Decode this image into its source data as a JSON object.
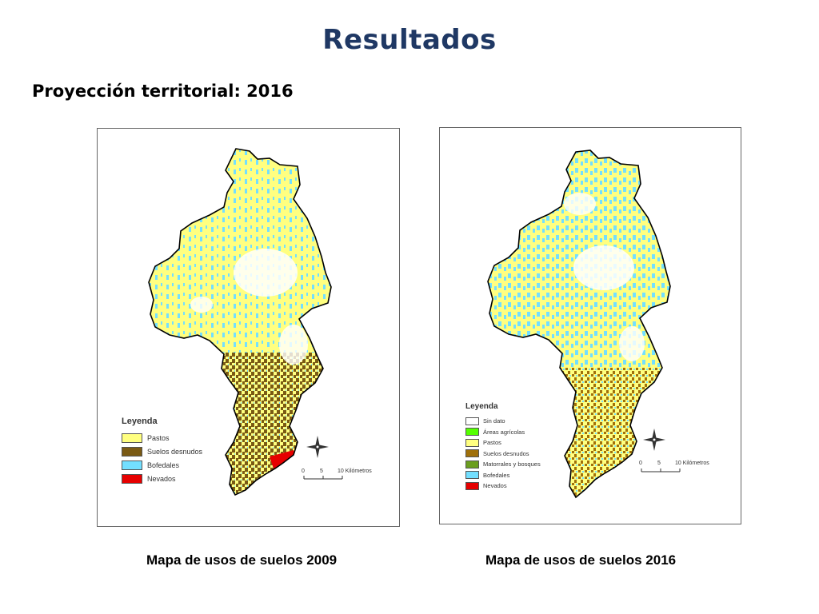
{
  "slide": {
    "title": "Resultados",
    "subtitle": "Proyección territorial: 2016"
  },
  "colors": {
    "title": "#1F3864",
    "pastos": "#FFFF80",
    "suelos_desnudos": "#7A5A14",
    "suelos_desnudos_2016": "#A0700A",
    "bofedales": "#73DFFF",
    "nevados": "#E60000",
    "sin_dato": "#FFFFFF",
    "areas_agricolas": "#55FF00",
    "matorrales": "#6B9E1F"
  },
  "maps": [
    {
      "caption": "Mapa de usos de suelos 2009",
      "legend": {
        "title": "Leyenda",
        "items": [
          {
            "label": "Pastos",
            "color": "#FFFF80"
          },
          {
            "label": "Suelos desnudos",
            "color": "#7A5A14"
          },
          {
            "label": "Bofedales",
            "color": "#73DFFF"
          },
          {
            "label": "Nevados",
            "color": "#E60000"
          }
        ]
      },
      "scale": {
        "ticks": [
          "0",
          "5",
          "10 Kilómetros"
        ]
      }
    },
    {
      "caption": "Mapa de usos de suelos 2016",
      "legend": {
        "title": "Leyenda",
        "items": [
          {
            "label": "Sin dato",
            "color": "#FFFFFF"
          },
          {
            "label": "Áreas agrícolas",
            "color": "#55FF00"
          },
          {
            "label": "Pastos",
            "color": "#FFFF80"
          },
          {
            "label": "Suelos desnudos",
            "color": "#A0700A"
          },
          {
            "label": "Matorrales y bosques",
            "color": "#6B9E1F"
          },
          {
            "label": "Bofedales",
            "color": "#73DFFF"
          },
          {
            "label": "Nevados",
            "color": "#E60000"
          }
        ]
      },
      "scale": {
        "ticks": [
          "0",
          "5",
          "10 Kilómetros"
        ]
      }
    }
  ]
}
